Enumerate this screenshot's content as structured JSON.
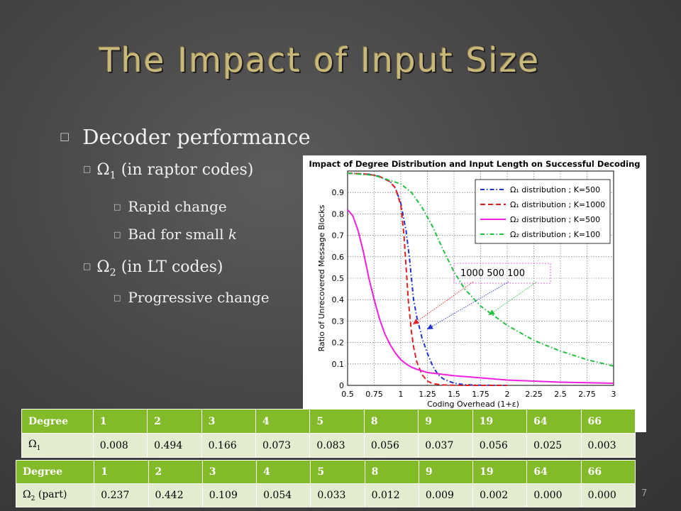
{
  "slide": {
    "title": "The Impact of Input Size",
    "page_number": "7",
    "bullet_symbol": "□"
  },
  "bullets": {
    "b1": "Decoder performance",
    "b2_prefix": "Ω",
    "b2_sub": "1",
    "b2_suffix": " (in raptor codes)",
    "b3": "Rapid change",
    "b4_prefix": "Bad for small ",
    "b4_k": "k",
    "b5_prefix": "Ω",
    "b5_sub": "2",
    "b5_suffix": " (in LT codes)",
    "b6": "Progressive change"
  },
  "chart_data": {
    "type": "line",
    "title": "Impact of Degree Distribution and Input Length on Successful Decoding",
    "xlabel": "Coding Overhead (1+ε)",
    "ylabel": "Ratio of Unrecovered Message Blocks",
    "xlim": [
      0.5,
      3
    ],
    "ylim": [
      0,
      1
    ],
    "xticks": [
      "0.5",
      "0.75",
      "1",
      "1.25",
      "1.5",
      "1.75",
      "2",
      "2.25",
      "2.5",
      "2.75",
      "3"
    ],
    "yticks": [
      "0",
      "0.1",
      "0.2",
      "0.3",
      "0.4",
      "0.5",
      "0.6",
      "0.7",
      "0.8",
      "0.9"
    ],
    "grid": true,
    "legend_position": "top-right",
    "annotation": "1000 500 100",
    "series": [
      {
        "name": "Ω₁ distribution ; K=500",
        "color": "#2030d0",
        "style": "dashdot",
        "x": [
          0.5,
          0.7,
          0.8,
          0.9,
          0.95,
          1.0,
          1.05,
          1.08,
          1.1,
          1.12,
          1.15,
          1.18,
          1.2,
          1.25,
          1.3,
          1.35,
          1.4,
          1.5,
          1.6,
          1.75,
          2.0
        ],
        "y": [
          0.99,
          0.985,
          0.975,
          0.95,
          0.92,
          0.85,
          0.72,
          0.6,
          0.5,
          0.4,
          0.32,
          0.26,
          0.22,
          0.15,
          0.09,
          0.05,
          0.03,
          0.01,
          0.003,
          0.001,
          0
        ]
      },
      {
        "name": "Ω₁ distribution ; K=1000",
        "color": "#e02020",
        "style": "dash",
        "x": [
          0.5,
          0.7,
          0.8,
          0.9,
          0.95,
          1.0,
          1.03,
          1.05,
          1.07,
          1.1,
          1.12,
          1.15,
          1.2,
          1.25,
          1.3,
          1.4,
          1.6,
          2.0
        ],
        "y": [
          0.99,
          0.985,
          0.975,
          0.95,
          0.92,
          0.84,
          0.7,
          0.55,
          0.4,
          0.25,
          0.18,
          0.11,
          0.05,
          0.02,
          0.008,
          0.002,
          0,
          0
        ]
      },
      {
        "name": "Ω₂ distribution ; K=500",
        "color": "#f020e0",
        "style": "solid",
        "x": [
          0.5,
          0.55,
          0.6,
          0.65,
          0.7,
          0.75,
          0.8,
          0.85,
          0.9,
          0.95,
          1.0,
          1.05,
          1.1,
          1.15,
          1.25,
          1.5,
          1.75,
          2.0,
          2.5,
          3.0
        ],
        "y": [
          0.82,
          0.79,
          0.72,
          0.62,
          0.5,
          0.4,
          0.31,
          0.24,
          0.19,
          0.15,
          0.12,
          0.1,
          0.085,
          0.075,
          0.06,
          0.045,
          0.035,
          0.025,
          0.015,
          0.01
        ]
      },
      {
        "name": "Ω₂ distribution ; K=100",
        "color": "#20c040",
        "style": "dashdot",
        "x": [
          0.5,
          0.75,
          1.0,
          1.1,
          1.2,
          1.3,
          1.4,
          1.5,
          1.6,
          1.75,
          2.0,
          2.25,
          2.5,
          2.75,
          3.0
        ],
        "y": [
          0.99,
          0.98,
          0.94,
          0.9,
          0.83,
          0.74,
          0.63,
          0.53,
          0.45,
          0.37,
          0.28,
          0.21,
          0.16,
          0.12,
          0.09
        ]
      }
    ]
  },
  "table1": {
    "header": [
      "Degree",
      "1",
      "2",
      "3",
      "4",
      "5",
      "8",
      "9",
      "19",
      "64",
      "66"
    ],
    "row_label_symbol": "Ω",
    "row_label_sub": "1",
    "values": [
      "0.008",
      "0.494",
      "0.166",
      "0.073",
      "0.083",
      "0.056",
      "0.037",
      "0.056",
      "0.025",
      "0.003"
    ]
  },
  "table2": {
    "header": [
      "Degree",
      "1",
      "2",
      "3",
      "4",
      "5",
      "8",
      "9",
      "19",
      "64",
      "66"
    ],
    "row_label_symbol": "Ω",
    "row_label_sub": "2",
    "row_label_suffix": " (part)",
    "values": [
      "0.237",
      "0.442",
      "0.109",
      "0.054",
      "0.033",
      "0.012",
      "0.009",
      "0.002",
      "0.000",
      "0.000"
    ]
  }
}
